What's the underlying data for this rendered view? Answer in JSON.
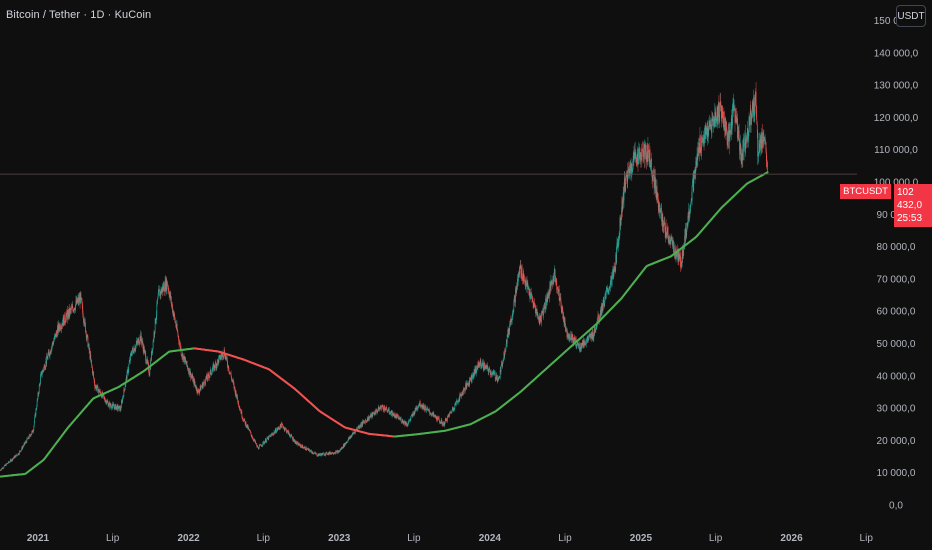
{
  "header": {
    "title": "Bitcoin / Tether · 1D · KuCoin",
    "currency_button": "USDT"
  },
  "price_marker": {
    "ticker": "BTCUSDT",
    "price": "102 432,0",
    "countdown": "25:53",
    "color": "#f23645"
  },
  "colors": {
    "background": "#0f0f0f",
    "candle_up": "#26a69a",
    "candle_down": "#ef5350",
    "ma_up": "#4caf50",
    "ma_down": "#ef5350"
  },
  "chart_data": {
    "type": "line",
    "y_ticks": [
      "150 000,0",
      "140 000,0",
      "130 000,0",
      "120 000,0",
      "110 000,0",
      "100 000,0",
      "90 000,0",
      "80 000,0",
      "70 000,0",
      "60 000,0",
      "50 000,0",
      "40 000,0",
      "30 000,0",
      "20 000,0",
      "10 000,0",
      "0,0"
    ],
    "x_ticks": [
      "2021",
      "Lip",
      "2022",
      "Lip",
      "2023",
      "Lip",
      "2024",
      "Lip",
      "2025",
      "Lip",
      "2026",
      "Lip"
    ],
    "ylim": [
      0,
      155000
    ],
    "series": [
      {
        "kind": "price",
        "points": [
          [
            "2020-10-01",
            10800
          ],
          [
            "2020-11-15",
            16000
          ],
          [
            "2020-12-20",
            23000
          ],
          [
            "2021-01-08",
            40000
          ],
          [
            "2021-02-20",
            55000
          ],
          [
            "2021-03-15",
            59000
          ],
          [
            "2021-04-14",
            64000
          ],
          [
            "2021-05-19",
            37000
          ],
          [
            "2021-06-22",
            31000
          ],
          [
            "2021-07-20",
            29800
          ],
          [
            "2021-08-15",
            47000
          ],
          [
            "2021-09-07",
            52000
          ],
          [
            "2021-09-28",
            41000
          ],
          [
            "2021-10-20",
            65000
          ],
          [
            "2021-11-10",
            69000
          ],
          [
            "2021-12-15",
            47000
          ],
          [
            "2022-01-24",
            35000
          ],
          [
            "2022-03-28",
            47500
          ],
          [
            "2022-05-12",
            27000
          ],
          [
            "2022-06-18",
            17600
          ],
          [
            "2022-08-15",
            24800
          ],
          [
            "2022-09-20",
            19000
          ],
          [
            "2022-11-09",
            15500
          ],
          [
            "2022-12-31",
            16500
          ],
          [
            "2023-02-15",
            24000
          ],
          [
            "2023-04-14",
            30500
          ],
          [
            "2023-06-15",
            25000
          ],
          [
            "2023-07-14",
            31500
          ],
          [
            "2023-09-11",
            25000
          ],
          [
            "2023-10-25",
            34500
          ],
          [
            "2023-12-08",
            44000
          ],
          [
            "2024-01-23",
            39000
          ],
          [
            "2024-02-28",
            62000
          ],
          [
            "2024-03-14",
            73500
          ],
          [
            "2024-05-01",
            57000
          ],
          [
            "2024-06-06",
            71500
          ],
          [
            "2024-07-05",
            53500
          ],
          [
            "2024-08-05",
            49000
          ],
          [
            "2024-09-06",
            52500
          ],
          [
            "2024-10-29",
            72500
          ],
          [
            "2024-11-22",
            99000
          ],
          [
            "2024-12-17",
            108000
          ],
          [
            "2025-01-20",
            109000
          ],
          [
            "2025-02-25",
            86000
          ],
          [
            "2025-04-08",
            75000
          ],
          [
            "2025-05-22",
            111000
          ],
          [
            "2025-07-14",
            123000
          ],
          [
            "2025-08-02",
            112000
          ],
          [
            "2025-08-14",
            124000
          ],
          [
            "2025-09-01",
            108000
          ],
          [
            "2025-10-06",
            126000
          ],
          [
            "2025-10-11",
            110000
          ],
          [
            "2025-10-27",
            115000
          ],
          [
            "2025-11-04",
            102432
          ]
        ]
      },
      {
        "kind": "moving-average",
        "points": [
          [
            "2020-10-01",
            8800
          ],
          [
            "2020-12-01",
            9600
          ],
          [
            "2021-01-15",
            14000
          ],
          [
            "2021-03-15",
            24000
          ],
          [
            "2021-05-15",
            33000
          ],
          [
            "2021-07-15",
            36500
          ],
          [
            "2021-09-15",
            41500
          ],
          [
            "2021-11-15",
            47500
          ],
          [
            "2022-01-15",
            48500
          ],
          [
            "2022-03-15",
            47500
          ],
          [
            "2022-05-15",
            45000
          ],
          [
            "2022-07-15",
            42000
          ],
          [
            "2022-09-15",
            36000
          ],
          [
            "2022-11-15",
            29000
          ],
          [
            "2023-01-15",
            24000
          ],
          [
            "2023-03-15",
            22000
          ],
          [
            "2023-05-15",
            21200
          ],
          [
            "2023-07-15",
            22000
          ],
          [
            "2023-09-15",
            23000
          ],
          [
            "2023-11-15",
            25000
          ],
          [
            "2024-01-15",
            29000
          ],
          [
            "2024-03-15",
            35000
          ],
          [
            "2024-05-15",
            42000
          ],
          [
            "2024-07-15",
            49000
          ],
          [
            "2024-09-15",
            56000
          ],
          [
            "2024-11-15",
            64000
          ],
          [
            "2025-01-15",
            74000
          ],
          [
            "2025-03-15",
            77000
          ],
          [
            "2025-05-15",
            83000
          ],
          [
            "2025-07-15",
            92000
          ],
          [
            "2025-09-15",
            99500
          ],
          [
            "2025-11-04",
            103000
          ]
        ]
      }
    ]
  }
}
